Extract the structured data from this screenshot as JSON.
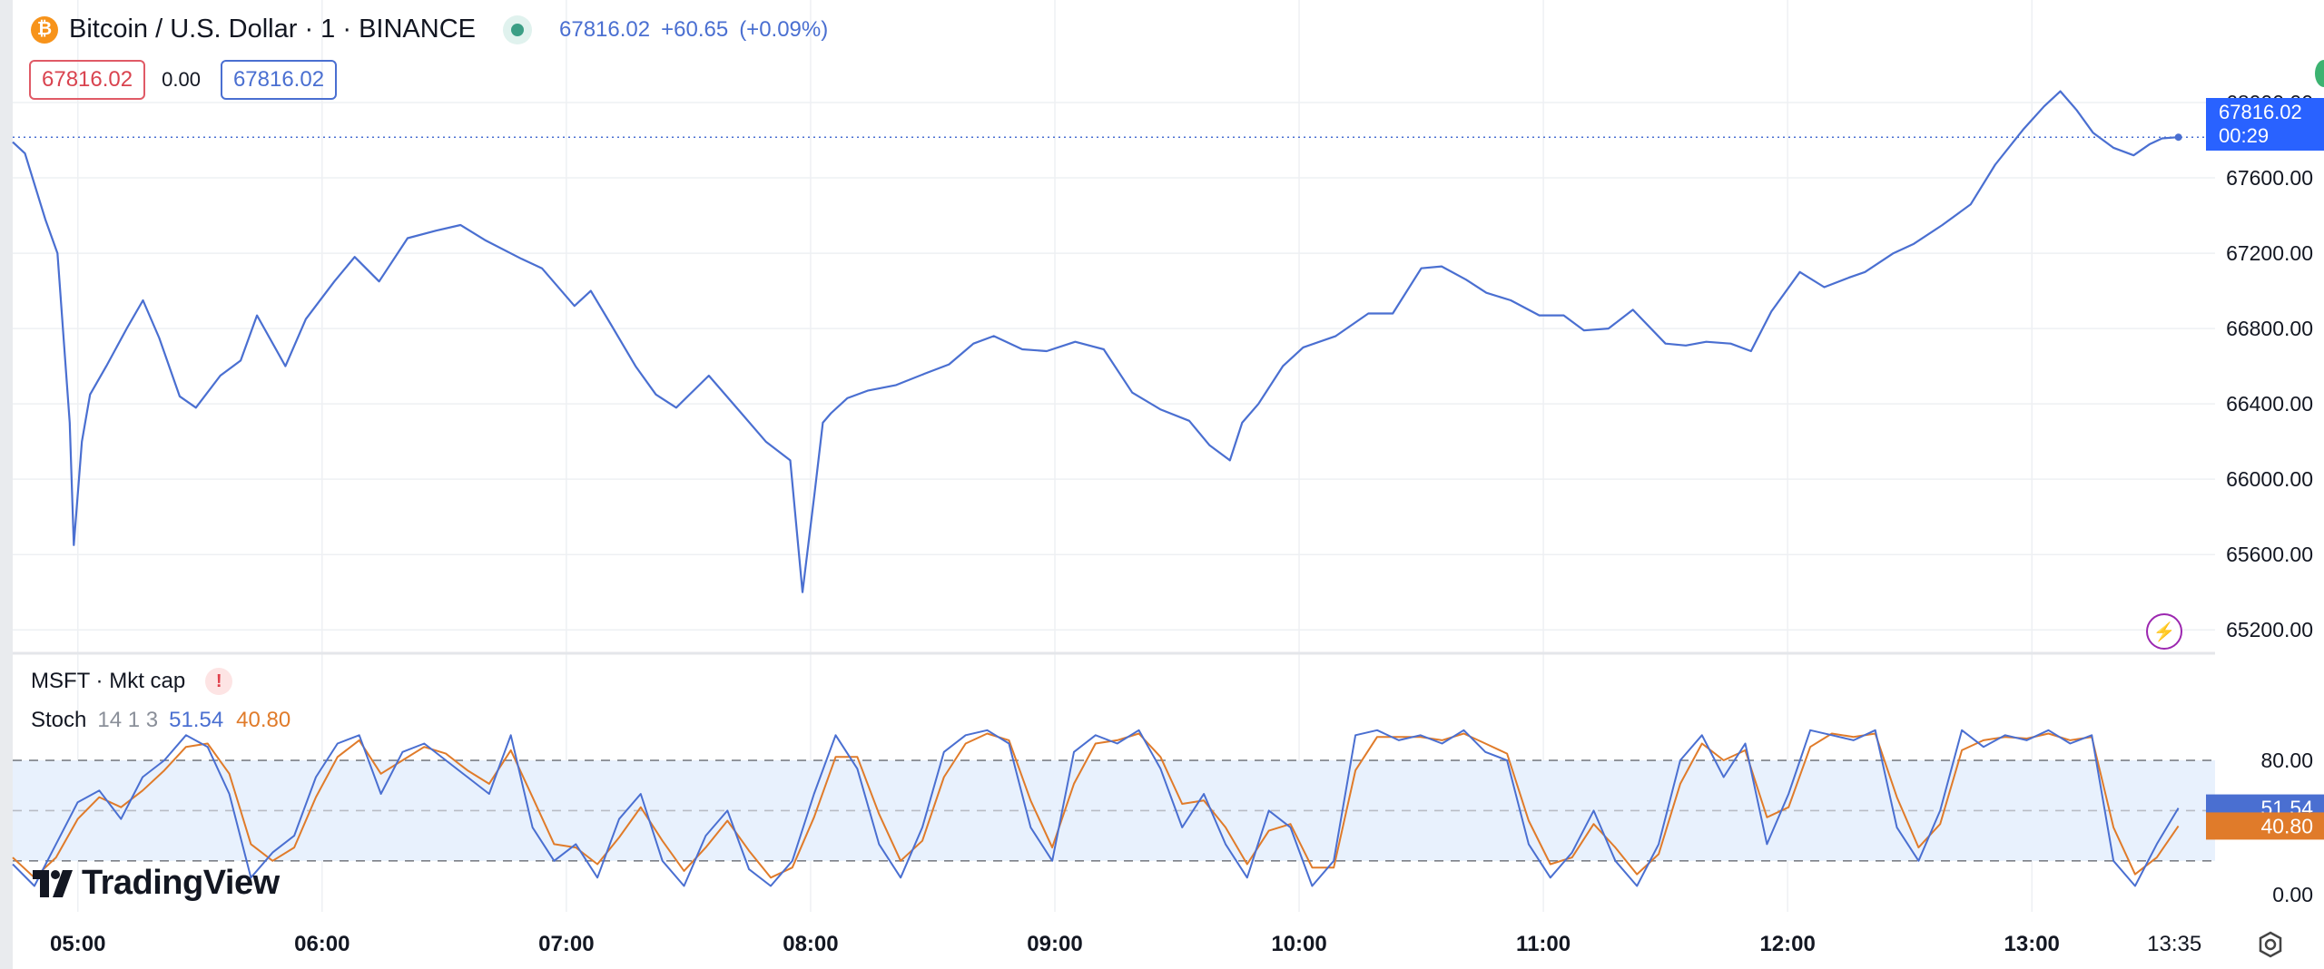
{
  "header": {
    "symbol_title": "Bitcoin / U.S. Dollar · 1 · BINANCE",
    "icon": "bitcoin-icon",
    "last_price": "67816.02",
    "change": "+60.65",
    "change_pct": "(+0.09%)",
    "bid": "67816.02",
    "spread": "0.00",
    "ask": "67816.02"
  },
  "price_tag": {
    "price": "67816.02",
    "countdown": "00:29"
  },
  "indicators": {
    "mktcap_label": "MSFT · Mkt cap",
    "warning_glyph": "!",
    "stoch_name": "Stoch",
    "stoch_params": "14 1 3",
    "stoch_k": "51.54",
    "stoch_d": "40.80"
  },
  "branding": {
    "logo_text": "TradingView"
  },
  "colors": {
    "price_line": "#4a6fd1",
    "k_line": "#4a6fd1",
    "d_line": "#e07b2a",
    "band_fill": "#e8f1fd",
    "grid": "#eef0f3",
    "axis_text": "#131722"
  },
  "chart_data": [
    {
      "type": "line",
      "series": [
        {
          "x": [
            "04:44",
            "04:47",
            "04:52",
            "04:55",
            "04:58",
            "04:59",
            "05:01",
            "05:03",
            "05:07",
            "05:12",
            "05:16",
            "05:20",
            "05:25",
            "05:29",
            "05:35",
            "05:40",
            "05:44",
            "05:51",
            "05:56",
            "06:03",
            "06:08",
            "06:14",
            "06:21",
            "06:28",
            "06:34",
            "06:40",
            "06:49",
            "06:54",
            "07:02",
            "07:06",
            "07:11",
            "07:17",
            "07:22",
            "07:27",
            "07:35",
            "07:43",
            "07:49",
            "07:55",
            "07:58",
            "08:01",
            "08:03",
            "08:05",
            "08:09",
            "08:14",
            "08:21",
            "08:28",
            "08:34",
            "08:40",
            "08:45",
            "08:52",
            "08:58",
            "09:05",
            "09:12",
            "09:19",
            "09:26",
            "09:33",
            "09:38",
            "09:43",
            "09:46",
            "09:50",
            "09:56",
            "10:01",
            "10:09",
            "10:17",
            "10:23",
            "10:30",
            "10:35",
            "10:41",
            "10:46",
            "10:52",
            "10:59",
            "11:05",
            "11:10",
            "11:16",
            "11:22",
            "11:30",
            "11:35",
            "11:40",
            "11:46",
            "11:51",
            "11:56",
            "12:03",
            "12:09",
            "12:15",
            "12:19",
            "12:26",
            "12:31",
            "12:38",
            "12:45",
            "12:51",
            "12:58",
            "13:03",
            "13:07",
            "13:11",
            "13:15",
            "13:20",
            "13:25",
            "13:29",
            "13:32",
            "13:36"
          ],
          "y": [
            67790,
            67730,
            67380,
            67200,
            66300,
            65650,
            66200,
            66450,
            66600,
            66800,
            66950,
            66750,
            66440,
            66380,
            66550,
            66630,
            66870,
            66600,
            66850,
            67050,
            67180,
            67050,
            67280,
            67320,
            67350,
            67270,
            67170,
            67120,
            66920,
            67000,
            66820,
            66600,
            66450,
            66380,
            66550,
            66350,
            66200,
            66100,
            65400,
            65930,
            66300,
            66350,
            66430,
            66470,
            66500,
            66560,
            66610,
            66720,
            66760,
            66690,
            66680,
            66730,
            66690,
            66460,
            66370,
            66310,
            66180,
            66100,
            66300,
            66400,
            66600,
            66700,
            66760,
            66880,
            66880,
            67120,
            67130,
            67060,
            66990,
            66950,
            66870,
            66870,
            66790,
            66800,
            66900,
            66720,
            66710,
            66730,
            66720,
            66680,
            66890,
            67100,
            67020,
            67070,
            67100,
            67200,
            67250,
            67350,
            67460,
            67670,
            67860,
            67980,
            68060,
            67960,
            67840,
            67760,
            67720,
            67780,
            67810,
            67816
          ]
        }
      ],
      "xlabel": "",
      "ylabel": "",
      "x_ticks": [
        "05:00",
        "06:00",
        "07:00",
        "08:00",
        "09:00",
        "10:00",
        "11:00",
        "12:00",
        "13:00",
        "13:35"
      ],
      "y_ticks": [
        "68000.00",
        "67600.00",
        "67200.00",
        "66800.00",
        "66400.00",
        "66000.00",
        "65600.00",
        "65200.00"
      ],
      "ylim": [
        65100,
        68400
      ],
      "xlim": [
        "04:44",
        "13:45"
      ],
      "grid": true
    },
    {
      "type": "line",
      "series": [
        {
          "name": "",
          "values": [
            18,
            5,
            30,
            55,
            62,
            45,
            70,
            80,
            95,
            88,
            60,
            10,
            25,
            35,
            70,
            90,
            95,
            60,
            85,
            90,
            80,
            70,
            60,
            95,
            40,
            20,
            30,
            10,
            45,
            60,
            20,
            5,
            35,
            50,
            15,
            5,
            20,
            60,
            95,
            75,
            30,
            10,
            40,
            85,
            95,
            98,
            90,
            40,
            20,
            85,
            95,
            90,
            98,
            75,
            40,
            60,
            30,
            10,
            50,
            40,
            5,
            20,
            95,
            98,
            92,
            95,
            90,
            98,
            85,
            80,
            30,
            10,
            25,
            50,
            20,
            5,
            30,
            80,
            95,
            70,
            90,
            30,
            60,
            98,
            95,
            92,
            98,
            40,
            20,
            50,
            98,
            88,
            95,
            92,
            98,
            90,
            95,
            20,
            5,
            30,
            51.54
          ]
        },
        {
          "name": "",
          "values": [
            22,
            10,
            22,
            45,
            58,
            52,
            62,
            74,
            88,
            90,
            72,
            30,
            20,
            28,
            58,
            82,
            92,
            72,
            80,
            88,
            84,
            74,
            66,
            86,
            58,
            30,
            28,
            18,
            34,
            52,
            32,
            14,
            28,
            44,
            26,
            10,
            16,
            46,
            82,
            82,
            48,
            20,
            32,
            70,
            90,
            96,
            92,
            56,
            28,
            66,
            90,
            92,
            96,
            82,
            54,
            56,
            40,
            18,
            38,
            42,
            16,
            16,
            74,
            94,
            94,
            94,
            92,
            96,
            90,
            84,
            44,
            18,
            22,
            42,
            28,
            12,
            24,
            66,
            90,
            80,
            86,
            46,
            52,
            88,
            96,
            94,
            96,
            58,
            28,
            42,
            86,
            92,
            94,
            93,
            96,
            92,
            94,
            40,
            12,
            22,
            40.8
          ]
        }
      ],
      "x_ticks": [
        "05:00",
        "06:00",
        "07:00",
        "08:00",
        "09:00",
        "10:00",
        "11:00",
        "12:00",
        "13:00",
        "13:35"
      ],
      "y_ticks": [
        "80.00",
        "0.00"
      ],
      "bands": [
        80,
        50,
        20
      ],
      "ylim": [
        -5,
        106
      ],
      "grid": true
    }
  ]
}
